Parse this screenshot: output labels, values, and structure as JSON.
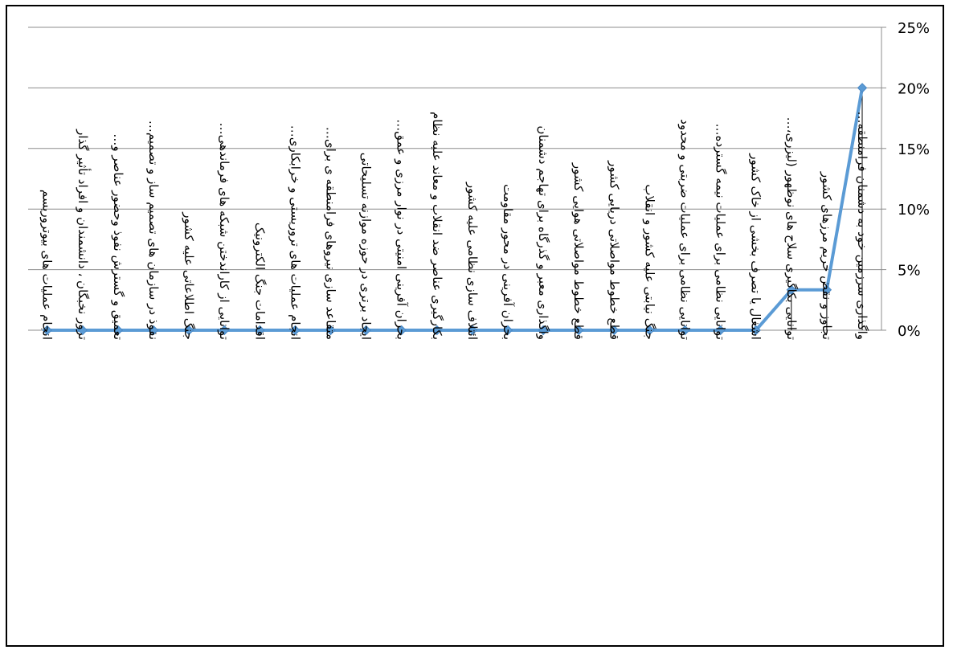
{
  "chart_data": {
    "type": "line",
    "title": "",
    "xlabel": "",
    "ylabel": "",
    "ylim": [
      0,
      25
    ],
    "y_ticks": [
      "0%",
      "5%",
      "10%",
      "15%",
      "20%",
      "25%"
    ],
    "y_axis_position": "right",
    "x_direction": "right-to-left",
    "grid": true,
    "drop_lines": true,
    "legend": "none",
    "colors": {
      "series": "#5b9bd5",
      "grid": "#8c8c8c",
      "border": "#000000"
    },
    "categories": [
      "واگذاری سرزمین خود به دشمنان فرامنطقه…",
      "تجاوز و نقض حریم مرزهای کشور",
      "توانایی بکاگیری سلاح های نوظهور (لیزری،…",
      "اشغال یا تصرف بخشی از خاک کشور",
      "توانایی نظامی برای عملیات نیمه گسترده…",
      "توانایی نظامی برای عملیات ضربتی و محدود",
      "جنگ نیابتی علیه کشور و انقلاب",
      "قطع خطوط مواصلاتی دریایی کشور",
      "قطع خطوط مواصلاتی هوایی کشور",
      "واگذاری معبر و گذرگاه برای تهاجم دشمنان",
      "بحران آفرینی در محور مقاومت",
      "ائتلاف سازی نظامی علیه کشور",
      "بکارگیری عناصر ضد انقلاب و معاند علیه نظام",
      "بحران آفرینی امنیتی در نوار مرزی و عمق…",
      "ایجاد برتری در حوزه موازنه تسلیحاتی",
      "متقاعد سازی نیروهای فرامنطقه ی برای…",
      "انجام عملیات های تروریستی و خرابکاری…",
      "اقدامات جنگ الکترونیک",
      "توانایی از کاراندختن شبکه های فرماندهی…",
      "جنگ اطلاعاتی علیه کشور",
      "نفوذ در سازمان های تصمیم ساز و تصمیم…",
      "تعمیق و گسترش نفوذ وحضور عناصر و…",
      "ترور نخبگان ، دانشمندان و افراد تأثیر گذار",
      "انجام عملیات های بیوتروریسم"
    ],
    "series": [
      {
        "values": [
          20,
          3.33,
          3.33,
          0,
          0,
          0,
          0,
          0,
          0,
          0,
          0,
          0,
          0,
          0,
          0,
          0,
          0,
          0,
          0,
          0,
          0,
          0,
          0,
          0
        ]
      }
    ]
  }
}
